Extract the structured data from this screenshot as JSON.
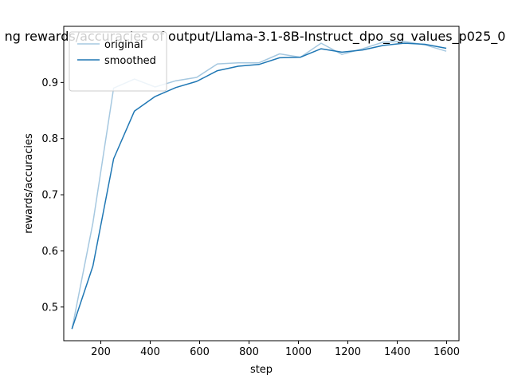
{
  "chart_data": {
    "type": "line",
    "title": "ng rewards/accuracies of output/Llama-3.1-8B-Instruct_dpo_sg_values_p025_0",
    "xlabel": "step",
    "ylabel": "rewards/accuracies",
    "xlim": [
      50,
      1650
    ],
    "ylim": [
      0.44,
      1.0
    ],
    "xticks": [
      200,
      400,
      600,
      800,
      1000,
      1200,
      1400,
      1600
    ],
    "yticks": [
      0.5,
      0.6,
      0.7,
      0.8,
      0.9
    ],
    "grid": false,
    "legend_position": "upper-left",
    "x": [
      84,
      168,
      252,
      336,
      420,
      504,
      588,
      672,
      756,
      840,
      924,
      1008,
      1092,
      1176,
      1260,
      1344,
      1428,
      1512,
      1596
    ],
    "series": [
      {
        "name": "original",
        "color": "#a6c8e0",
        "values": [
          0.462,
          0.65,
          0.89,
          0.906,
          0.892,
          0.903,
          0.909,
          0.933,
          0.935,
          0.935,
          0.951,
          0.945,
          0.97,
          0.95,
          0.96,
          0.972,
          0.973,
          0.967,
          0.956
        ]
      },
      {
        "name": "smoothed",
        "color": "#1f77b4",
        "values": [
          0.462,
          0.573,
          0.764,
          0.849,
          0.875,
          0.891,
          0.902,
          0.921,
          0.929,
          0.932,
          0.944,
          0.945,
          0.96,
          0.954,
          0.958,
          0.966,
          0.97,
          0.968,
          0.961
        ]
      }
    ]
  }
}
